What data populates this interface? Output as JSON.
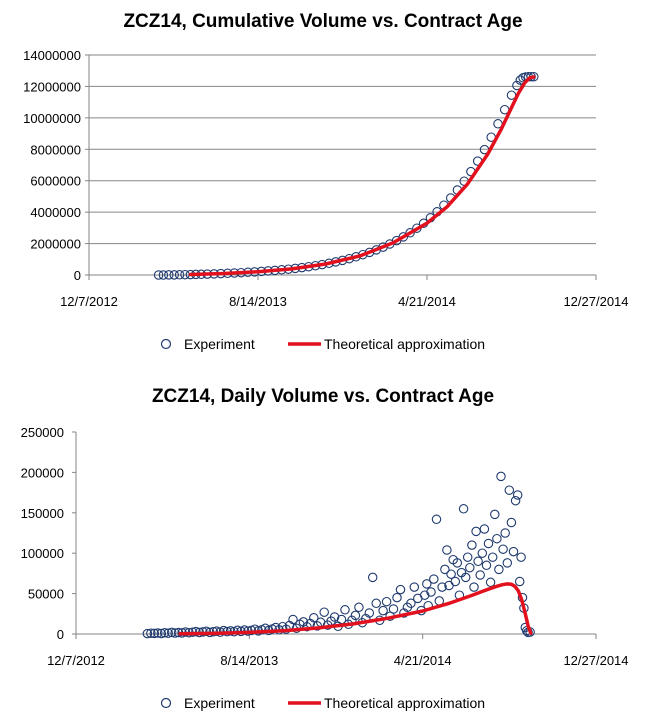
{
  "colors": {
    "experiment": "#1f3a6e",
    "theory": "#e3101d",
    "axis": "#868686"
  },
  "chart_data": [
    {
      "type": "scatter",
      "title": "ZCZ14, Cumulative Volume vs. Contract Age",
      "xlabel": "",
      "ylabel": "",
      "x_ticks": [
        "12/7/2012",
        "8/14/2013",
        "4/21/2014",
        "12/27/2014"
      ],
      "x_tick_values": [
        0,
        250,
        500,
        750
      ],
      "xlim": [
        0,
        750
      ],
      "ylim": [
        0,
        14000000
      ],
      "y_ticks": [
        0,
        2000000,
        4000000,
        6000000,
        8000000,
        10000000,
        12000000,
        14000000
      ],
      "grid": "horizontal",
      "legend": "bottom",
      "series": [
        {
          "name": "Experiment",
          "kind": "markers",
          "points": [
            [
              103,
              0
            ],
            [
              110,
              2000
            ],
            [
              118,
              5000
            ],
            [
              126,
              9000
            ],
            [
              134,
              14000
            ],
            [
              142,
              20000
            ],
            [
              150,
              28000
            ],
            [
              158,
              36000
            ],
            [
              166,
              46000
            ],
            [
              175,
              58000
            ],
            [
              185,
              72000
            ],
            [
              195,
              88000
            ],
            [
              205,
              106000
            ],
            [
              215,
              126000
            ],
            [
              225,
              148000
            ],
            [
              235,
              172000
            ],
            [
              245,
              198000
            ],
            [
              255,
              226000
            ],
            [
              265,
              258000
            ],
            [
              275,
              292000
            ],
            [
              285,
              330000
            ],
            [
              295,
              372000
            ],
            [
              305,
              418000
            ],
            [
              315,
              470000
            ],
            [
              325,
              528000
            ],
            [
              335,
              592000
            ],
            [
              345,
              664000
            ],
            [
              355,
              744000
            ],
            [
              365,
              832000
            ],
            [
              375,
              930000
            ],
            [
              385,
              1038000
            ],
            [
              395,
              1158000
            ],
            [
              405,
              1290000
            ],
            [
              415,
              1436000
            ],
            [
              425,
              1598000
            ],
            [
              435,
              1776000
            ],
            [
              445,
              1972000
            ],
            [
              455,
              2188000
            ],
            [
              465,
              2426000
            ],
            [
              475,
              2688000
            ],
            [
              485,
              2976000
            ],
            [
              495,
              3292000
            ],
            [
              505,
              3640000
            ],
            [
              515,
              4020000
            ],
            [
              525,
              4440000
            ],
            [
              535,
              4900000
            ],
            [
              545,
              5410000
            ],
            [
              555,
              5970000
            ],
            [
              565,
              6580000
            ],
            [
              575,
              7250000
            ],
            [
              585,
              7980000
            ],
            [
              595,
              8770000
            ],
            [
              605,
              9620000
            ],
            [
              615,
              10520000
            ],
            [
              625,
              11440000
            ],
            [
              633,
              12060000
            ],
            [
              638,
              12400000
            ],
            [
              642,
              12550000
            ],
            [
              646,
              12600000
            ],
            [
              650,
              12610000
            ],
            [
              654,
              12620000
            ],
            [
              658,
              12620000
            ]
          ]
        },
        {
          "name": "Theoretical approximation",
          "kind": "line",
          "points": [
            [
              150,
              30000
            ],
            [
              200,
              95000
            ],
            [
              250,
              210000
            ],
            [
              300,
              390000
            ],
            [
              350,
              700000
            ],
            [
              400,
              1200000
            ],
            [
              450,
              2050000
            ],
            [
              500,
              3300000
            ],
            [
              530,
              4350000
            ],
            [
              560,
              5800000
            ],
            [
              590,
              7700000
            ],
            [
              610,
              9300000
            ],
            [
              625,
              10650000
            ],
            [
              635,
              11550000
            ],
            [
              645,
              12250000
            ],
            [
              652,
              12550000
            ],
            [
              658,
              12600000
            ]
          ]
        }
      ]
    },
    {
      "type": "scatter",
      "title": "ZCZ14, Daily Volume vs. Contract Age",
      "xlabel": "",
      "ylabel": "",
      "x_ticks": [
        "12/7/2012",
        "8/14/2013",
        "4/21/2014",
        "12/27/2014"
      ],
      "x_tick_values": [
        0,
        250,
        500,
        750
      ],
      "xlim": [
        0,
        750
      ],
      "ylim": [
        0,
        250000
      ],
      "y_ticks": [
        0,
        50000,
        100000,
        150000,
        200000,
        250000
      ],
      "grid": "none",
      "legend": "bottom",
      "series": [
        {
          "name": "Experiment",
          "kind": "markers",
          "points": [
            [
              103,
              500
            ],
            [
              108,
              1000
            ],
            [
              113,
              800
            ],
            [
              118,
              1200
            ],
            [
              123,
              600
            ],
            [
              128,
              1500
            ],
            [
              133,
              1000
            ],
            [
              138,
              2000
            ],
            [
              143,
              1200
            ],
            [
              148,
              1800
            ],
            [
              153,
              1400
            ],
            [
              158,
              2500
            ],
            [
              163,
              1600
            ],
            [
              168,
              2200
            ],
            [
              173,
              3000
            ],
            [
              178,
              1800
            ],
            [
              183,
              2600
            ],
            [
              188,
              3400
            ],
            [
              193,
              2000
            ],
            [
              198,
              2800
            ],
            [
              203,
              3600
            ],
            [
              208,
              2400
            ],
            [
              213,
              4200
            ],
            [
              218,
              3000
            ],
            [
              223,
              3800
            ],
            [
              228,
              2800
            ],
            [
              233,
              4600
            ],
            [
              238,
              3200
            ],
            [
              243,
              5000
            ],
            [
              248,
              3600
            ],
            [
              253,
              4400
            ],
            [
              258,
              6000
            ],
            [
              263,
              3800
            ],
            [
              268,
              5200
            ],
            [
              273,
              7000
            ],
            [
              278,
              4400
            ],
            [
              283,
              6200
            ],
            [
              288,
              8000
            ],
            [
              293,
              5200
            ],
            [
              298,
              9000
            ],
            [
              303,
              6000
            ],
            [
              308,
              10500
            ],
            [
              313,
              18000
            ],
            [
              318,
              7000
            ],
            [
              323,
              12000
            ],
            [
              328,
              15000
            ],
            [
              333,
              9000
            ],
            [
              338,
              13000
            ],
            [
              343,
              20000
            ],
            [
              348,
              10000
            ],
            [
              353,
              14500
            ],
            [
              358,
              27000
            ],
            [
              363,
              11000
            ],
            [
              368,
              16000
            ],
            [
              373,
              21000
            ],
            [
              378,
              9500
            ],
            [
              383,
              18000
            ],
            [
              388,
              30000
            ],
            [
              393,
              12000
            ],
            [
              398,
              17000
            ],
            [
              403,
              23000
            ],
            [
              408,
              33000
            ],
            [
              413,
              14000
            ],
            [
              418,
              19000
            ],
            [
              423,
              26000
            ],
            [
              428,
              70000
            ],
            [
              433,
              38000
            ],
            [
              438,
              17000
            ],
            [
              443,
              29000
            ],
            [
              448,
              40000
            ],
            [
              453,
              22000
            ],
            [
              458,
              31000
            ],
            [
              463,
              45000
            ],
            [
              468,
              55000
            ],
            [
              473,
              26000
            ],
            [
              478,
              33000
            ],
            [
              483,
              38000
            ],
            [
              488,
              58000
            ],
            [
              493,
              44000
            ],
            [
              498,
              29000
            ],
            [
              503,
              48000
            ],
            [
              506,
              62000
            ],
            [
              508,
              35000
            ],
            [
              512,
              52000
            ],
            [
              516,
              68000
            ],
            [
              520,
              142000
            ],
            [
              524,
              41000
            ],
            [
              528,
              58000
            ],
            [
              532,
              80000
            ],
            [
              535,
              104000
            ],
            [
              538,
              60000
            ],
            [
              541,
              74000
            ],
            [
              544,
              92000
            ],
            [
              547,
              65000
            ],
            [
              550,
              88000
            ],
            [
              553,
              48000
            ],
            [
              556,
              76000
            ],
            [
              559,
              155000
            ],
            [
              562,
              70000
            ],
            [
              565,
              95000
            ],
            [
              568,
              82000
            ],
            [
              571,
              110000
            ],
            [
              574,
              58000
            ],
            [
              577,
              127000
            ],
            [
              580,
              90000
            ],
            [
              583,
              73000
            ],
            [
              586,
              100000
            ],
            [
              589,
              130000
            ],
            [
              592,
              85000
            ],
            [
              595,
              112000
            ],
            [
              598,
              64000
            ],
            [
              601,
              95000
            ],
            [
              604,
              148000
            ],
            [
              607,
              118000
            ],
            [
              610,
              80000
            ],
            [
              613,
              195000
            ],
            [
              616,
              105000
            ],
            [
              619,
              125000
            ],
            [
              622,
              88000
            ],
            [
              625,
              178000
            ],
            [
              628,
              138000
            ],
            [
              631,
              102000
            ],
            [
              634,
              165000
            ],
            [
              637,
              172000
            ],
            [
              640,
              65000
            ],
            [
              642,
              95000
            ],
            [
              644,
              45000
            ],
            [
              646,
              32000
            ],
            [
              648,
              8000
            ],
            [
              650,
              4000
            ],
            [
              652,
              2000
            ],
            [
              655,
              2500
            ]
          ]
        },
        {
          "name": "Theoretical approximation",
          "kind": "line",
          "points": [
            [
              150,
              300
            ],
            [
              200,
              800
            ],
            [
              250,
              2000
            ],
            [
              300,
              4000
            ],
            [
              350,
              7500
            ],
            [
              400,
              12500
            ],
            [
              450,
              19500
            ],
            [
              500,
              28500
            ],
            [
              540,
              38500
            ],
            [
              570,
              47500
            ],
            [
              590,
              54000
            ],
            [
              605,
              58500
            ],
            [
              615,
              61000
            ],
            [
              622,
              62000
            ],
            [
              628,
              61500
            ],
            [
              633,
              59000
            ],
            [
              638,
              53500
            ],
            [
              643,
              42000
            ],
            [
              648,
              25000
            ],
            [
              652,
              10000
            ],
            [
              656,
              1000
            ]
          ]
        }
      ]
    }
  ]
}
